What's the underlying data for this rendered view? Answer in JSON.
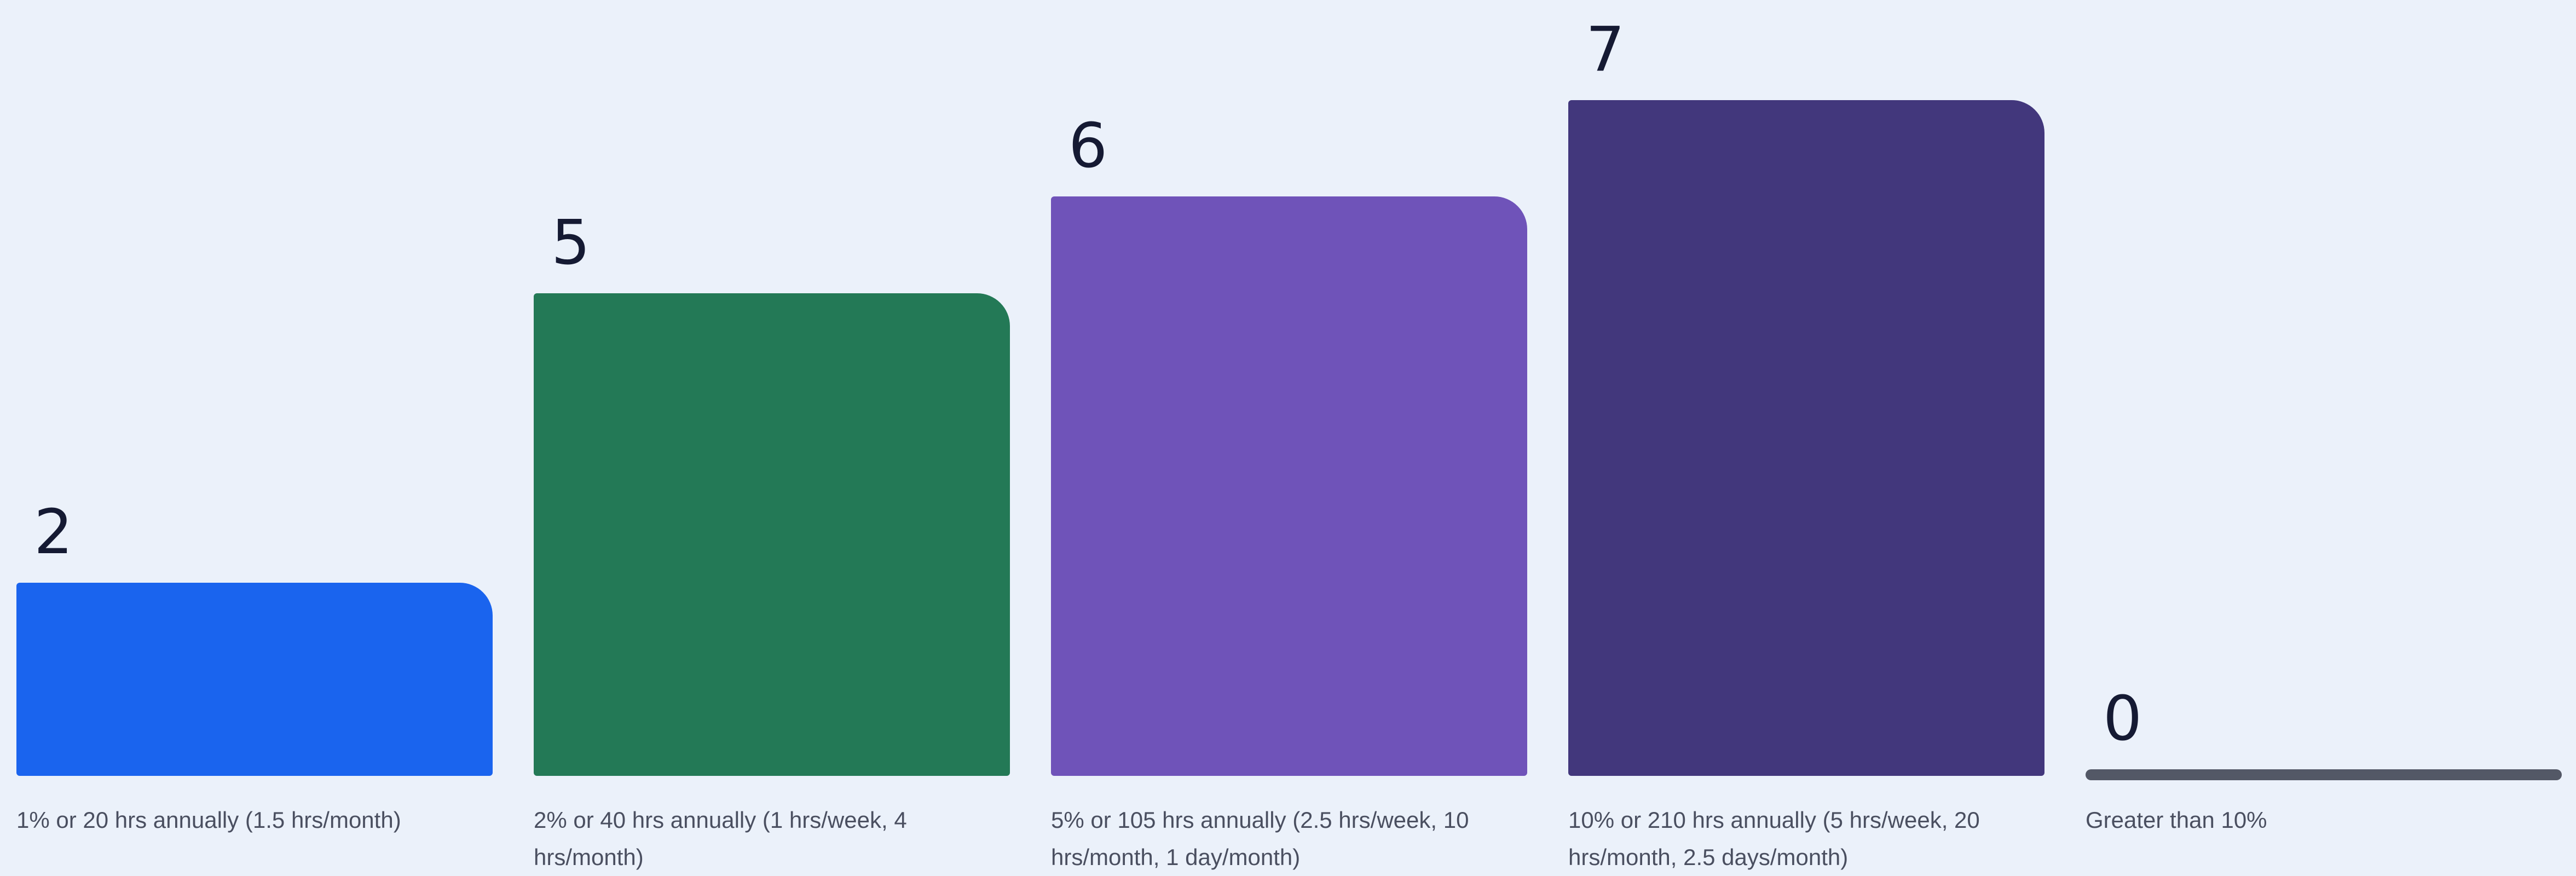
{
  "chart_data": {
    "type": "bar",
    "categories": [
      "1% or 20 hrs annually (1.5 hrs/month)",
      "2% or 40 hrs annually (1 hrs/week, 4 hrs/month)",
      "5% or 105 hrs annually (2.5 hrs/week, 10 hrs/month, 1 day/month)",
      "10% or 210 hrs annually (5 hrs/week, 20 hrs/month, 2.5 days/month)",
      "Greater than 10%"
    ],
    "values": [
      2,
      5,
      6,
      7,
      0
    ],
    "colors": [
      "#1A64EE",
      "#237956",
      "#6F53B9",
      "#42377C",
      "#535866"
    ],
    "title": "",
    "xlabel": "",
    "ylabel": "",
    "ylim": [
      0,
      7
    ],
    "grid": false,
    "legend": "none"
  }
}
